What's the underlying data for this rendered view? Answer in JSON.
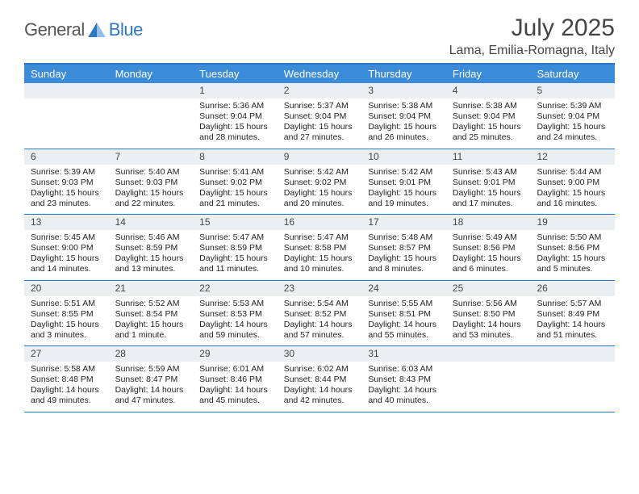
{
  "brand": {
    "general": "General",
    "blue": "Blue"
  },
  "title": "July 2025",
  "location": "Lama, Emilia-Romagna, Italy",
  "colors": {
    "accent": "#3a8bd8",
    "accent_border": "#2a78c2",
    "header_text": "#ffffff",
    "daynum_bg": "#eceff1",
    "page_bg": "#ffffff",
    "text": "#333333"
  },
  "day_names": [
    "Sunday",
    "Monday",
    "Tuesday",
    "Wednesday",
    "Thursday",
    "Friday",
    "Saturday"
  ],
  "leading_blanks": 2,
  "days": [
    {
      "n": 1,
      "sunrise": "5:36 AM",
      "sunset": "9:04 PM",
      "daylight": "15 hours and 28 minutes."
    },
    {
      "n": 2,
      "sunrise": "5:37 AM",
      "sunset": "9:04 PM",
      "daylight": "15 hours and 27 minutes."
    },
    {
      "n": 3,
      "sunrise": "5:38 AM",
      "sunset": "9:04 PM",
      "daylight": "15 hours and 26 minutes."
    },
    {
      "n": 4,
      "sunrise": "5:38 AM",
      "sunset": "9:04 PM",
      "daylight": "15 hours and 25 minutes."
    },
    {
      "n": 5,
      "sunrise": "5:39 AM",
      "sunset": "9:04 PM",
      "daylight": "15 hours and 24 minutes."
    },
    {
      "n": 6,
      "sunrise": "5:39 AM",
      "sunset": "9:03 PM",
      "daylight": "15 hours and 23 minutes."
    },
    {
      "n": 7,
      "sunrise": "5:40 AM",
      "sunset": "9:03 PM",
      "daylight": "15 hours and 22 minutes."
    },
    {
      "n": 8,
      "sunrise": "5:41 AM",
      "sunset": "9:02 PM",
      "daylight": "15 hours and 21 minutes."
    },
    {
      "n": 9,
      "sunrise": "5:42 AM",
      "sunset": "9:02 PM",
      "daylight": "15 hours and 20 minutes."
    },
    {
      "n": 10,
      "sunrise": "5:42 AM",
      "sunset": "9:01 PM",
      "daylight": "15 hours and 19 minutes."
    },
    {
      "n": 11,
      "sunrise": "5:43 AM",
      "sunset": "9:01 PM",
      "daylight": "15 hours and 17 minutes."
    },
    {
      "n": 12,
      "sunrise": "5:44 AM",
      "sunset": "9:00 PM",
      "daylight": "15 hours and 16 minutes."
    },
    {
      "n": 13,
      "sunrise": "5:45 AM",
      "sunset": "9:00 PM",
      "daylight": "15 hours and 14 minutes."
    },
    {
      "n": 14,
      "sunrise": "5:46 AM",
      "sunset": "8:59 PM",
      "daylight": "15 hours and 13 minutes."
    },
    {
      "n": 15,
      "sunrise": "5:47 AM",
      "sunset": "8:59 PM",
      "daylight": "15 hours and 11 minutes."
    },
    {
      "n": 16,
      "sunrise": "5:47 AM",
      "sunset": "8:58 PM",
      "daylight": "15 hours and 10 minutes."
    },
    {
      "n": 17,
      "sunrise": "5:48 AM",
      "sunset": "8:57 PM",
      "daylight": "15 hours and 8 minutes."
    },
    {
      "n": 18,
      "sunrise": "5:49 AM",
      "sunset": "8:56 PM",
      "daylight": "15 hours and 6 minutes."
    },
    {
      "n": 19,
      "sunrise": "5:50 AM",
      "sunset": "8:56 PM",
      "daylight": "15 hours and 5 minutes."
    },
    {
      "n": 20,
      "sunrise": "5:51 AM",
      "sunset": "8:55 PM",
      "daylight": "15 hours and 3 minutes."
    },
    {
      "n": 21,
      "sunrise": "5:52 AM",
      "sunset": "8:54 PM",
      "daylight": "15 hours and 1 minute."
    },
    {
      "n": 22,
      "sunrise": "5:53 AM",
      "sunset": "8:53 PM",
      "daylight": "14 hours and 59 minutes."
    },
    {
      "n": 23,
      "sunrise": "5:54 AM",
      "sunset": "8:52 PM",
      "daylight": "14 hours and 57 minutes."
    },
    {
      "n": 24,
      "sunrise": "5:55 AM",
      "sunset": "8:51 PM",
      "daylight": "14 hours and 55 minutes."
    },
    {
      "n": 25,
      "sunrise": "5:56 AM",
      "sunset": "8:50 PM",
      "daylight": "14 hours and 53 minutes."
    },
    {
      "n": 26,
      "sunrise": "5:57 AM",
      "sunset": "8:49 PM",
      "daylight": "14 hours and 51 minutes."
    },
    {
      "n": 27,
      "sunrise": "5:58 AM",
      "sunset": "8:48 PM",
      "daylight": "14 hours and 49 minutes."
    },
    {
      "n": 28,
      "sunrise": "5:59 AM",
      "sunset": "8:47 PM",
      "daylight": "14 hours and 47 minutes."
    },
    {
      "n": 29,
      "sunrise": "6:01 AM",
      "sunset": "8:46 PM",
      "daylight": "14 hours and 45 minutes."
    },
    {
      "n": 30,
      "sunrise": "6:02 AM",
      "sunset": "8:44 PM",
      "daylight": "14 hours and 42 minutes."
    },
    {
      "n": 31,
      "sunrise": "6:03 AM",
      "sunset": "8:43 PM",
      "daylight": "14 hours and 40 minutes."
    }
  ],
  "labels": {
    "sunrise": "Sunrise:",
    "sunset": "Sunset:",
    "daylight": "Daylight:"
  }
}
